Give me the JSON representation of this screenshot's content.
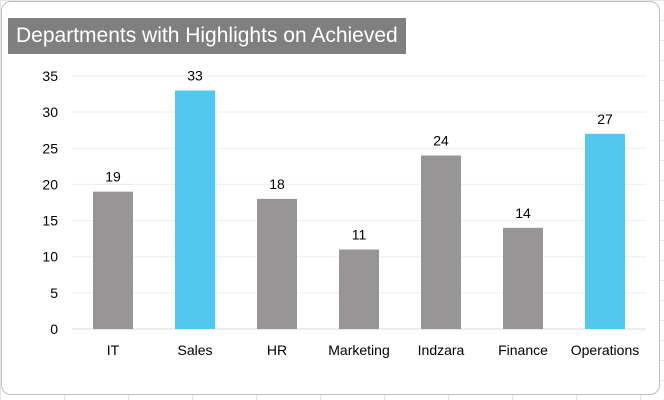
{
  "chart_data": {
    "type": "bar",
    "title": "Departments with Highlights on Achieved",
    "categories": [
      "IT",
      "Sales",
      "HR",
      "Marketing",
      "Indzara",
      "Finance",
      "Operations"
    ],
    "values": [
      19,
      33,
      18,
      11,
      24,
      14,
      27
    ],
    "highlighted": [
      false,
      true,
      false,
      false,
      false,
      false,
      true
    ],
    "ylim": [
      0,
      35
    ],
    "yticks": [
      0,
      5,
      10,
      15,
      20,
      25,
      30,
      35
    ],
    "xlabel": "",
    "ylabel": "",
    "grid": true,
    "legend": "none",
    "colors": {
      "base": "#979595",
      "highlight": "#53c8ef",
      "grid": "#eeeeee"
    }
  }
}
